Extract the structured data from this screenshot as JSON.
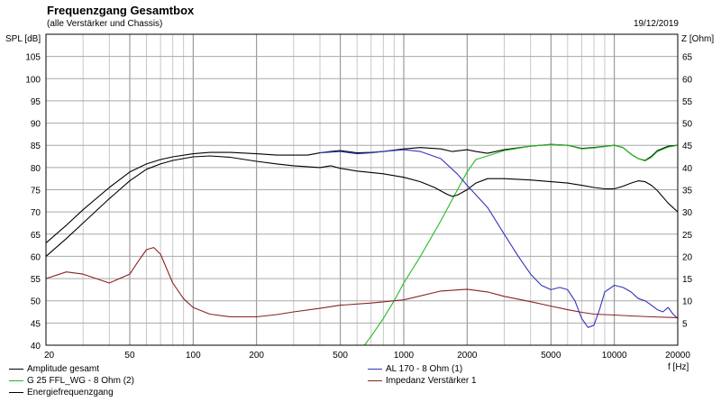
{
  "header": {
    "title": "Frequenzgang Gesamtbox",
    "subtitle": "(alle Verstärker und Chassis)",
    "date": "19/12/2019"
  },
  "chart_data": {
    "type": "line",
    "title": "Frequenzgang Gesamtbox",
    "subtitle": "(alle Verstärker und Chassis)",
    "xlabel": "f [Hz]",
    "ylabel": "SPL [dB]",
    "y2label": "Z [Ohm]",
    "xscale": "log",
    "xlim": [
      20,
      20000
    ],
    "ylim": [
      40,
      110
    ],
    "y2lim": [
      0,
      70
    ],
    "grid": true,
    "x_ticks": [
      20,
      50,
      100,
      200,
      500,
      1000,
      2000,
      5000,
      10000,
      20000
    ],
    "x_tick_labels": [
      "20",
      "50",
      "100",
      "200",
      "500",
      "1000",
      "2000",
      "5000",
      "10000",
      "20000"
    ],
    "y_ticks": [
      40,
      45,
      50,
      55,
      60,
      65,
      70,
      75,
      80,
      85,
      90,
      95,
      100,
      105
    ],
    "y_tick_labels": [
      "40",
      "45",
      "50",
      "55",
      "60",
      "65",
      "70",
      "75",
      "80",
      "85",
      "90",
      "95",
      "100",
      "105"
    ],
    "y2_ticks": [
      5,
      10,
      15,
      20,
      25,
      30,
      35,
      40,
      45,
      50,
      55,
      60,
      65
    ],
    "y2_tick_labels": [
      "5",
      "10",
      "15",
      "20",
      "25",
      "30",
      "35",
      "40",
      "45",
      "50",
      "55",
      "60",
      "65"
    ],
    "legend_position": "bottom",
    "series": [
      {
        "name": "Amplitude gesamt",
        "color": "#000000",
        "axis": "left",
        "points": [
          [
            20,
            63
          ],
          [
            25,
            67
          ],
          [
            30,
            70.5
          ],
          [
            40,
            75.5
          ],
          [
            50,
            79
          ],
          [
            60,
            80.8
          ],
          [
            70,
            81.8
          ],
          [
            80,
            82.4
          ],
          [
            100,
            83.1
          ],
          [
            120,
            83.4
          ],
          [
            150,
            83.4
          ],
          [
            200,
            83.1
          ],
          [
            250,
            82.8
          ],
          [
            300,
            82.8
          ],
          [
            350,
            82.8
          ],
          [
            400,
            83.3
          ],
          [
            450,
            83.6
          ],
          [
            500,
            83.8
          ],
          [
            600,
            83.3
          ],
          [
            700,
            83.4
          ],
          [
            800,
            83.6
          ],
          [
            1000,
            84.2
          ],
          [
            1200,
            84.5
          ],
          [
            1500,
            84.2
          ],
          [
            1700,
            83.6
          ],
          [
            2000,
            84
          ],
          [
            2200,
            83.6
          ],
          [
            2500,
            83.2
          ],
          [
            3000,
            84
          ],
          [
            4000,
            84.8
          ],
          [
            5000,
            85.2
          ],
          [
            6000,
            85
          ],
          [
            7000,
            84.3
          ],
          [
            8000,
            84.5
          ],
          [
            10000,
            85
          ],
          [
            11000,
            84.5
          ],
          [
            12000,
            83
          ],
          [
            13000,
            82
          ],
          [
            14000,
            81.6
          ],
          [
            15000,
            82.5
          ],
          [
            16000,
            83.8
          ],
          [
            18000,
            84.8
          ],
          [
            20000,
            85
          ]
        ]
      },
      {
        "name": "G 25 FFL_WG - 8 Ohm (2)",
        "color": "#22bb22",
        "axis": "left",
        "points": [
          [
            650,
            40
          ],
          [
            700,
            42
          ],
          [
            800,
            46
          ],
          [
            900,
            50
          ],
          [
            1000,
            54
          ],
          [
            1200,
            60
          ],
          [
            1500,
            68
          ],
          [
            1800,
            75
          ],
          [
            2000,
            79
          ],
          [
            2200,
            81.8
          ],
          [
            2500,
            82.6
          ],
          [
            3000,
            83.8
          ],
          [
            4000,
            84.8
          ],
          [
            5000,
            85.2
          ],
          [
            6000,
            85
          ],
          [
            7000,
            84.2
          ],
          [
            8000,
            84.4
          ],
          [
            10000,
            85
          ],
          [
            11000,
            84.5
          ],
          [
            12000,
            83
          ],
          [
            13000,
            82
          ],
          [
            14000,
            81.5
          ],
          [
            15000,
            82.3
          ],
          [
            16000,
            83.6
          ],
          [
            18000,
            84.6
          ],
          [
            20000,
            85
          ]
        ]
      },
      {
        "name": "Energiefrequenzgang",
        "color": "#000000",
        "axis": "left",
        "points": [
          [
            20,
            60
          ],
          [
            25,
            64
          ],
          [
            30,
            67.5
          ],
          [
            40,
            73
          ],
          [
            50,
            77
          ],
          [
            60,
            79.6
          ],
          [
            70,
            80.8
          ],
          [
            80,
            81.6
          ],
          [
            100,
            82.4
          ],
          [
            120,
            82.6
          ],
          [
            150,
            82.3
          ],
          [
            200,
            81.4
          ],
          [
            250,
            80.8
          ],
          [
            300,
            80.4
          ],
          [
            400,
            80
          ],
          [
            450,
            80.4
          ],
          [
            500,
            79.8
          ],
          [
            600,
            79.2
          ],
          [
            800,
            78.6
          ],
          [
            1000,
            77.8
          ],
          [
            1200,
            76.8
          ],
          [
            1400,
            75.5
          ],
          [
            1600,
            74
          ],
          [
            1700,
            73.5
          ],
          [
            1800,
            73.8
          ],
          [
            2000,
            75
          ],
          [
            2200,
            76.5
          ],
          [
            2500,
            77.5
          ],
          [
            3000,
            77.5
          ],
          [
            4000,
            77.2
          ],
          [
            5000,
            76.8
          ],
          [
            6000,
            76.5
          ],
          [
            7000,
            76
          ],
          [
            8000,
            75.5
          ],
          [
            9000,
            75.2
          ],
          [
            10000,
            75.2
          ],
          [
            11000,
            75.8
          ],
          [
            12000,
            76.5
          ],
          [
            13000,
            77
          ],
          [
            14000,
            76.8
          ],
          [
            15000,
            76
          ],
          [
            16000,
            74.8
          ],
          [
            18000,
            72
          ],
          [
            20000,
            70
          ]
        ]
      },
      {
        "name": "AL 170 - 8 Ohm (1)",
        "color": "#3333bb",
        "axis": "left",
        "points": [
          [
            400,
            83.3
          ],
          [
            500,
            83.6
          ],
          [
            600,
            83.1
          ],
          [
            700,
            83.3
          ],
          [
            800,
            83.6
          ],
          [
            1000,
            84
          ],
          [
            1200,
            83.6
          ],
          [
            1500,
            82
          ],
          [
            1800,
            78.5
          ],
          [
            2000,
            76
          ],
          [
            2500,
            71
          ],
          [
            3000,
            65
          ],
          [
            3500,
            60
          ],
          [
            4000,
            56
          ],
          [
            4500,
            53.5
          ],
          [
            5000,
            52.5
          ],
          [
            5500,
            53
          ],
          [
            6000,
            52.5
          ],
          [
            6500,
            50
          ],
          [
            7000,
            46
          ],
          [
            7500,
            44
          ],
          [
            8000,
            44.5
          ],
          [
            8500,
            48
          ],
          [
            9000,
            52
          ],
          [
            10000,
            53.5
          ],
          [
            11000,
            53
          ],
          [
            12000,
            52
          ],
          [
            13000,
            50.5
          ],
          [
            14000,
            50
          ],
          [
            15000,
            49
          ],
          [
            16000,
            48
          ],
          [
            17000,
            47.5
          ],
          [
            18000,
            48.5
          ],
          [
            19000,
            47
          ],
          [
            20000,
            46
          ]
        ]
      },
      {
        "name": "Impedanz Verstärker 1",
        "color": "#882222",
        "axis": "right",
        "points": [
          [
            20,
            15
          ],
          [
            25,
            16.5
          ],
          [
            30,
            16
          ],
          [
            40,
            14
          ],
          [
            50,
            16
          ],
          [
            55,
            19
          ],
          [
            60,
            21.5
          ],
          [
            65,
            22
          ],
          [
            70,
            20.5
          ],
          [
            80,
            14
          ],
          [
            90,
            10.5
          ],
          [
            100,
            8.5
          ],
          [
            120,
            7
          ],
          [
            150,
            6.4
          ],
          [
            200,
            6.4
          ],
          [
            250,
            6.9
          ],
          [
            300,
            7.5
          ],
          [
            400,
            8.3
          ],
          [
            500,
            9
          ],
          [
            700,
            9.5
          ],
          [
            1000,
            10.2
          ],
          [
            1500,
            12.2
          ],
          [
            2000,
            12.6
          ],
          [
            2500,
            12
          ],
          [
            3000,
            11
          ],
          [
            4000,
            9.8
          ],
          [
            5000,
            8.8
          ],
          [
            6000,
            8
          ],
          [
            7000,
            7.4
          ],
          [
            8000,
            7
          ],
          [
            10000,
            6.8
          ],
          [
            12000,
            6.6
          ],
          [
            15000,
            6.4
          ],
          [
            20000,
            6.2
          ]
        ]
      }
    ]
  }
}
